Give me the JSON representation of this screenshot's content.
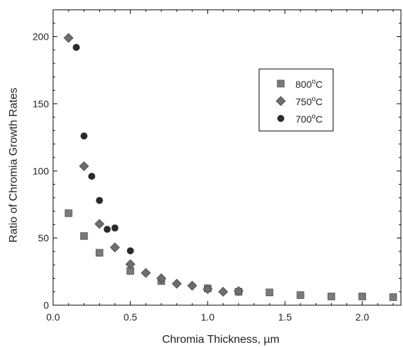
{
  "chart_data": {
    "type": "scatter",
    "xlabel": "Chromia Thickness,",
    "xlabel_unit": "µm",
    "ylabel": "Ratio of Chromia Growth Rates",
    "xlim": [
      0,
      2.25
    ],
    "ylim": [
      0,
      220
    ],
    "xticks": [
      0.0,
      0.5,
      1.0,
      1.5,
      2.0
    ],
    "xtick_labels": [
      "0.0",
      "0.5",
      "1.0",
      "1.5",
      "2.0"
    ],
    "yticks": [
      0,
      50,
      100,
      150,
      200
    ],
    "ytick_labels": [
      "0",
      "50",
      "100",
      "150",
      "200"
    ],
    "grid": false,
    "legend_position": "upper-right",
    "series": [
      {
        "name": "800°C",
        "name_base": "800",
        "name_sup": "o",
        "name_unit": "C",
        "marker": "square",
        "color": "#7a7a7a",
        "points": [
          [
            0.1,
            68.5
          ],
          [
            0.2,
            51.5
          ],
          [
            0.3,
            39
          ],
          [
            0.5,
            25.5
          ],
          [
            0.7,
            18
          ],
          [
            1.0,
            12.5
          ],
          [
            1.2,
            10
          ],
          [
            1.4,
            9.5
          ],
          [
            1.6,
            7.5
          ],
          [
            1.8,
            6.5
          ],
          [
            2.0,
            6.5
          ],
          [
            2.2,
            6
          ]
        ]
      },
      {
        "name": "750°C",
        "name_base": "750",
        "name_sup": "o",
        "name_unit": "C",
        "marker": "diamond",
        "color": "#6e6e6e",
        "points": [
          [
            0.1,
            199
          ],
          [
            0.2,
            103.5
          ],
          [
            0.3,
            60.5
          ],
          [
            0.4,
            43
          ],
          [
            0.5,
            30.5
          ],
          [
            0.6,
            24
          ],
          [
            0.7,
            20
          ],
          [
            0.8,
            16
          ],
          [
            0.9,
            14.5
          ],
          [
            1.0,
            12
          ],
          [
            1.1,
            10
          ],
          [
            1.2,
            10.5
          ]
        ]
      },
      {
        "name": "700°C",
        "name_base": "700",
        "name_sup": "o",
        "name_unit": "C",
        "marker": "circle",
        "color": "#2b2b2b",
        "points": [
          [
            0.15,
            192
          ],
          [
            0.2,
            126
          ],
          [
            0.25,
            96
          ],
          [
            0.3,
            78
          ],
          [
            0.35,
            56.5
          ],
          [
            0.4,
            57.5
          ],
          [
            0.5,
            40.5
          ]
        ]
      }
    ]
  }
}
